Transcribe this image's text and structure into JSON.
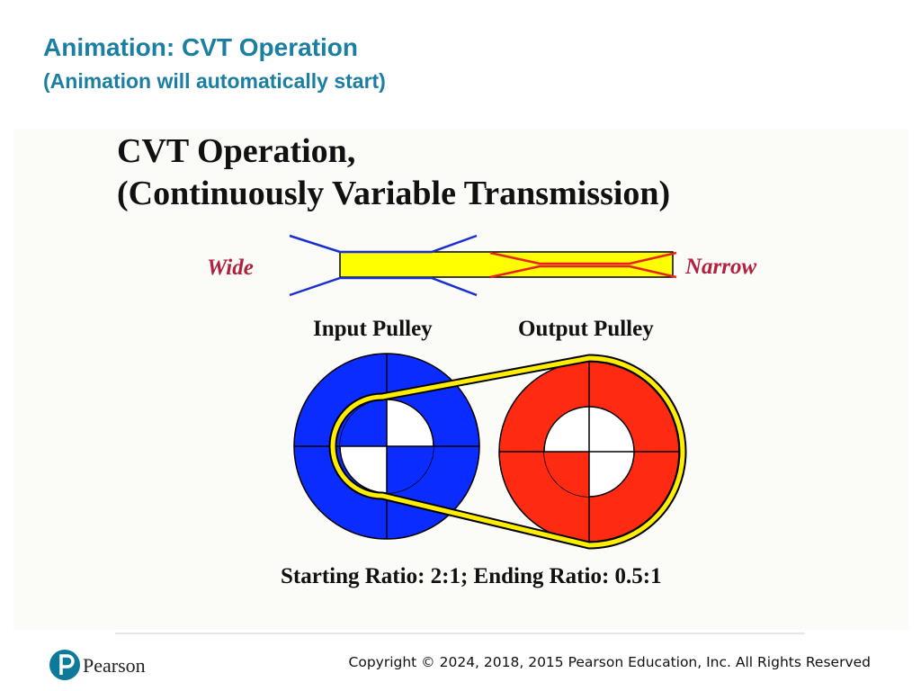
{
  "header": {
    "title": "Animation: CVT Operation",
    "subtitle": "(Animation will automatically start)"
  },
  "diagram": {
    "title_line1": "CVT Operation,",
    "title_line2": "(Continuously Variable Transmission)",
    "wide_label": "Wide",
    "narrow_label": "Narrow",
    "input_label": "Input Pulley",
    "output_label": "Output Pulley",
    "ratio_text": "Starting Ratio: 2:1; Ending Ratio: 0.5:1"
  },
  "footer": {
    "logo_text": "Pearson",
    "copyright": "Copyright © 2024, 2018, 2015 Pearson Education, Inc. All Rights Reserved"
  }
}
